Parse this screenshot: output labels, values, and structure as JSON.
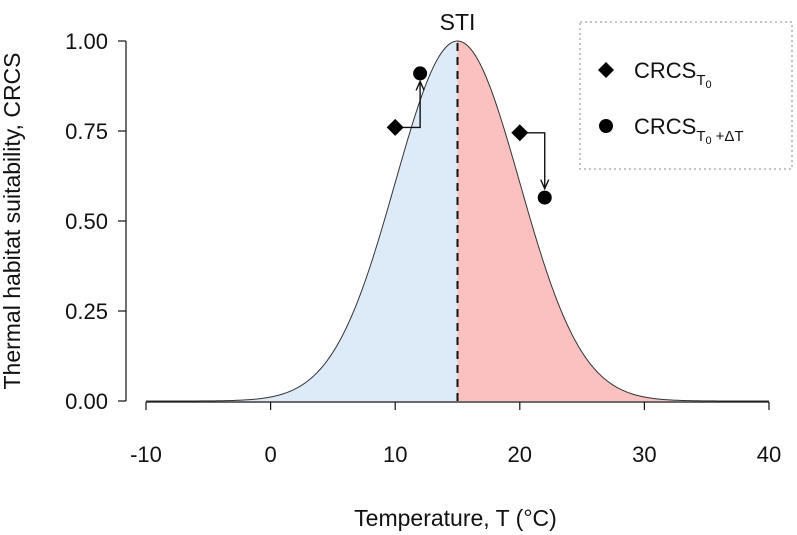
{
  "chart_data": {
    "type": "area",
    "title": "",
    "xlabel": "Temperature, T (°C)",
    "ylabel": "Thermal habitat suitability, CRCS",
    "xlim": [
      -10,
      40
    ],
    "ylim": [
      0,
      1
    ],
    "x_ticks": [
      -10,
      0,
      10,
      20,
      30,
      40
    ],
    "y_ticks": [
      0.0,
      0.25,
      0.5,
      0.75,
      1.0
    ],
    "x_tick_labels": [
      "-10",
      "0",
      "10",
      "20",
      "30",
      "40"
    ],
    "y_tick_labels": [
      "0.00",
      "0.25",
      "0.50",
      "0.75",
      "1.00"
    ],
    "curve": {
      "type": "gaussian",
      "mean": 15,
      "sd": 5,
      "peak": 1.0
    },
    "sti": {
      "x": 15,
      "label": "STI"
    },
    "regions": [
      {
        "name": "below STI",
        "from": -10,
        "to": 15,
        "color": "#dcebf7"
      },
      {
        "name": "above STI",
        "from": 15,
        "to": 40,
        "color": "#fbc1c1"
      }
    ],
    "series": [
      {
        "name": "CRCS_T0",
        "marker": "diamond",
        "points": [
          {
            "x": 10,
            "y": 0.76
          },
          {
            "x": 20,
            "y": 0.745
          }
        ]
      },
      {
        "name": "CRCS_T0+ΔT",
        "marker": "circle",
        "points": [
          {
            "x": 12,
            "y": 0.91
          },
          {
            "x": 22,
            "y": 0.565
          }
        ]
      }
    ],
    "arrows": [
      {
        "from_series": 0,
        "from_point": 0,
        "to_series": 1,
        "to_point": 0
      },
      {
        "from_series": 0,
        "from_point": 1,
        "to_series": 1,
        "to_point": 1
      }
    ],
    "legend": {
      "placement": "top-right",
      "entries": [
        {
          "marker": "diamond",
          "label_main": "CRCS",
          "label_sub": "T",
          "label_sub2": "0",
          "label_extra": ""
        },
        {
          "marker": "circle",
          "label_main": "CRCS",
          "label_sub": "T",
          "label_sub2": "0",
          "label_extra": "+ΔT"
        }
      ]
    }
  }
}
